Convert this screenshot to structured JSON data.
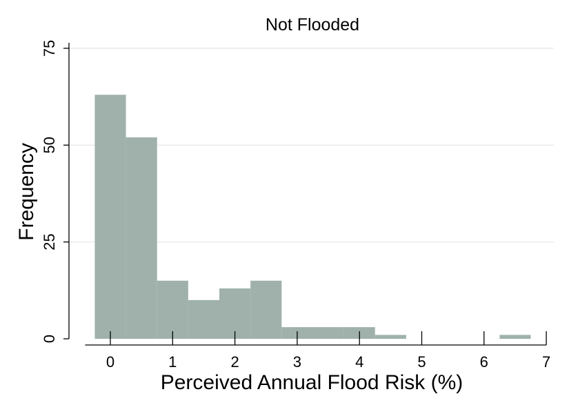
{
  "chart_data": {
    "type": "bar",
    "title": "Not Flooded",
    "xlabel": "Perceived Annual Flood Risk (%)",
    "ylabel": "Frequency",
    "xlim": [
      -0.25,
      7
    ],
    "ylim": [
      0,
      75
    ],
    "xticks": [
      "0",
      "1",
      "2",
      "3",
      "4",
      "5",
      "6",
      "7"
    ],
    "yticks": [
      "0",
      "25",
      "50",
      "75"
    ],
    "grid": true,
    "bin_width": 0.5,
    "bins": [
      {
        "start": -0.25,
        "end": 0.25,
        "value": 63
      },
      {
        "start": 0.25,
        "end": 0.75,
        "value": 52
      },
      {
        "start": 0.75,
        "end": 1.25,
        "value": 15
      },
      {
        "start": 1.25,
        "end": 1.75,
        "value": 10
      },
      {
        "start": 1.75,
        "end": 2.25,
        "value": 13
      },
      {
        "start": 2.25,
        "end": 2.75,
        "value": 15
      },
      {
        "start": 2.75,
        "end": 3.25,
        "value": 3
      },
      {
        "start": 3.25,
        "end": 3.75,
        "value": 3
      },
      {
        "start": 3.75,
        "end": 4.25,
        "value": 3
      },
      {
        "start": 4.25,
        "end": 4.75,
        "value": 1
      },
      {
        "start": 4.75,
        "end": 5.25,
        "value": 0
      },
      {
        "start": 5.25,
        "end": 5.75,
        "value": 0
      },
      {
        "start": 5.75,
        "end": 6.25,
        "value": 0
      },
      {
        "start": 6.25,
        "end": 6.75,
        "value": 1
      }
    ],
    "bar_color": "#9fb1aa",
    "grid_color": "#e4e4e4"
  }
}
